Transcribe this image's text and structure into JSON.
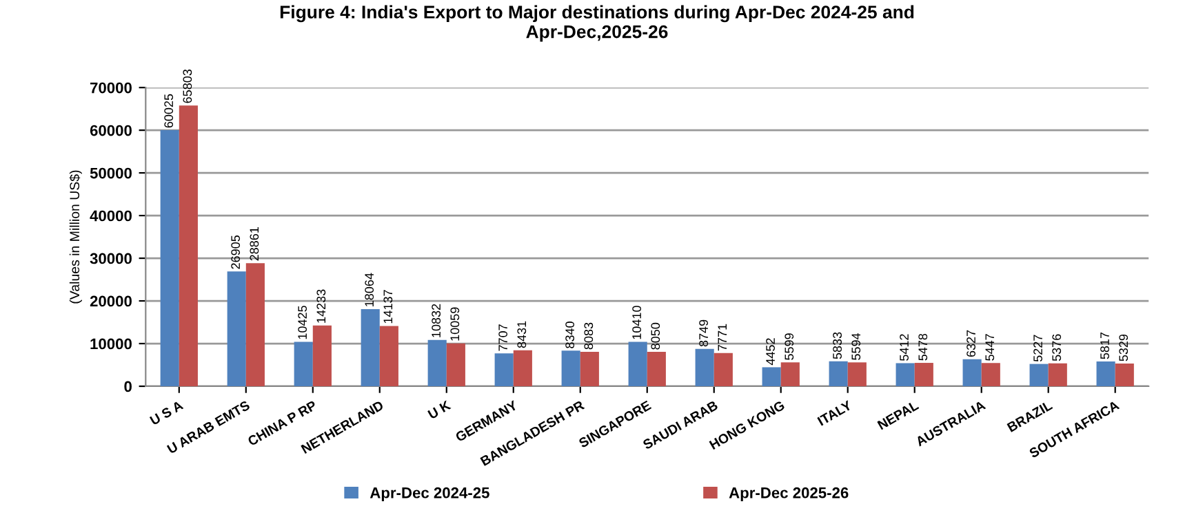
{
  "chart_data": {
    "type": "bar",
    "title": "Figure 4: India's Export to Major destinations during Apr-Dec 2024-25 and\nApr-Dec,2025-26",
    "ylabel": "(Values in Million US$)",
    "categories": [
      "U S A",
      "U ARAB EMTS",
      "CHINA P RP",
      "NETHERLAND",
      "U K",
      "GERMANY",
      "BANGLADESH PR",
      "SINGAPORE",
      "SAUDI ARAB",
      "HONG KONG",
      "ITALY",
      "NEPAL",
      "AUSTRALIA",
      "BRAZIL",
      "SOUTH AFRICA"
    ],
    "series": [
      {
        "name": "Apr-Dec 2024-25",
        "color": "#4f81bd",
        "values": [
          60025,
          26905,
          10425,
          18064,
          10832,
          7707,
          8340,
          10410,
          8749,
          4452,
          5833,
          5412,
          6327,
          5227,
          5817
        ]
      },
      {
        "name": "Apr-Dec 2025-26",
        "color": "#c0504d",
        "values": [
          65803,
          28861,
          14233,
          14137,
          10059,
          8431,
          8083,
          8050,
          7771,
          5599,
          5594,
          5478,
          5447,
          5376,
          5329
        ]
      }
    ],
    "ylim": [
      0,
      70000
    ],
    "yticks": [
      0,
      10000,
      20000,
      30000,
      40000,
      50000,
      60000,
      70000
    ],
    "grid": "y",
    "legend": "bottom",
    "data_labels": true
  }
}
